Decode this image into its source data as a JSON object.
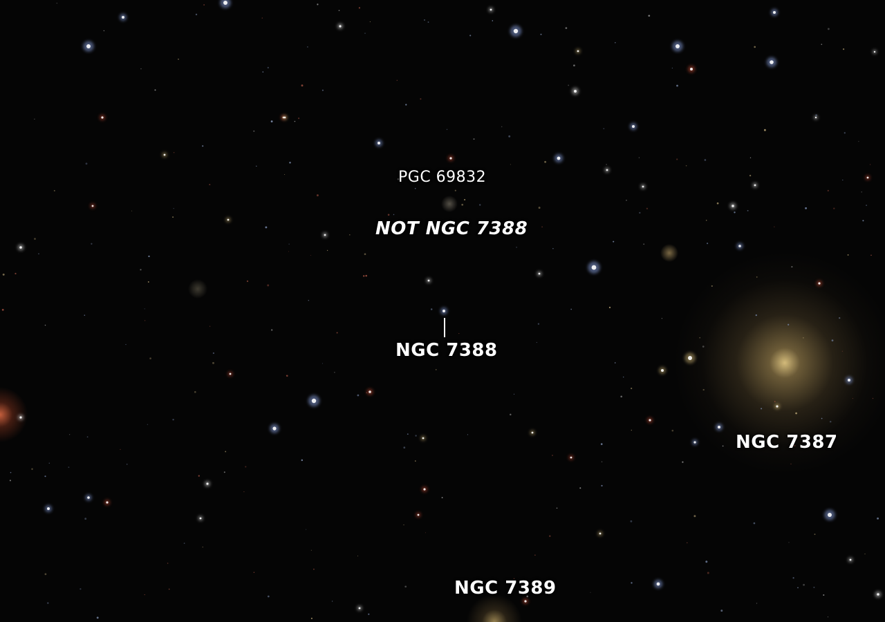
{
  "labels": {
    "pgc_69832": "PGC 69832",
    "not_ngc_7388": "NOT NGC 7388",
    "ngc_7388": "NGC 7388",
    "ngc_7387": "NGC 7387",
    "ngc_7389": "NGC 7389"
  },
  "colors": {
    "background": "#050505",
    "label_text": "#ffffff",
    "blue_star": "#9db8ff",
    "white_star": "#f2f2f2",
    "yellow_galaxy": "#d8bd7a",
    "red_star": "#e0553a"
  }
}
